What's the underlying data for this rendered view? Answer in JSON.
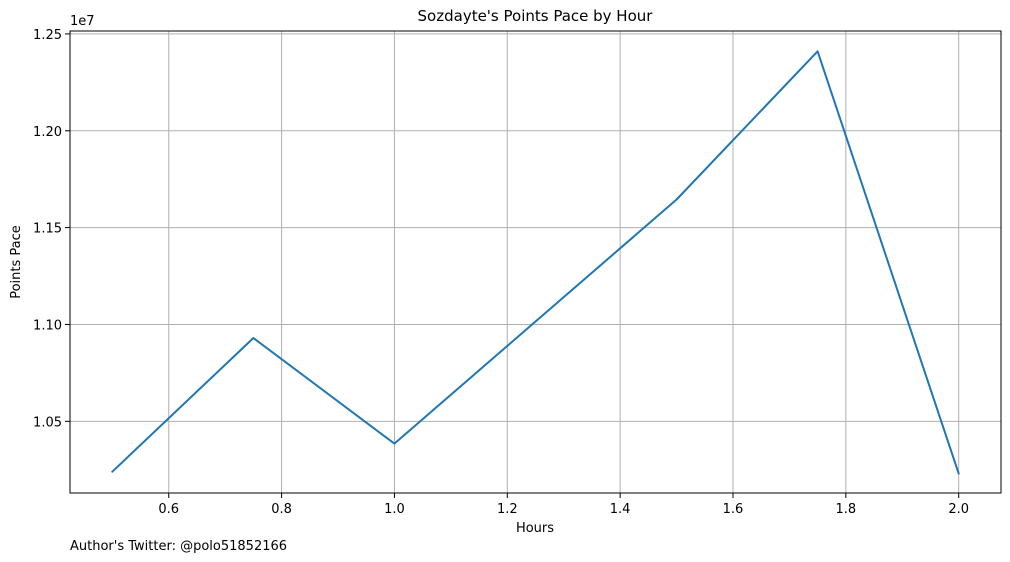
{
  "chart_data": {
    "type": "line",
    "title": "Sozdayte's Points Pace by Hour",
    "xlabel": "Hours",
    "ylabel": "Points Pace",
    "y_scale_label": "1e7",
    "footnote": "Author's Twitter: @polo51852166",
    "x_ticks": [
      0.6,
      0.8,
      1.0,
      1.2,
      1.4,
      1.6,
      1.8,
      2.0
    ],
    "x_tick_labels": [
      "0.6",
      "0.8",
      "1.0",
      "1.2",
      "1.4",
      "1.6",
      "1.8",
      "2.0"
    ],
    "y_ticks": [
      10500000,
      11000000,
      11500000,
      12000000,
      12500000
    ],
    "y_tick_labels": [
      "1.05",
      "1.10",
      "1.15",
      "1.20",
      "1.25"
    ],
    "xlim": [
      0.425,
      2.075
    ],
    "ylim": [
      10130000,
      12515000
    ],
    "grid": true,
    "series": [
      {
        "color": "#1f77b4",
        "x": [
          0.5,
          0.75,
          1.0,
          1.5,
          1.75,
          2.0
        ],
        "y": [
          10240000,
          10930000,
          10385000,
          11645000,
          12410000,
          10230000
        ]
      }
    ]
  }
}
